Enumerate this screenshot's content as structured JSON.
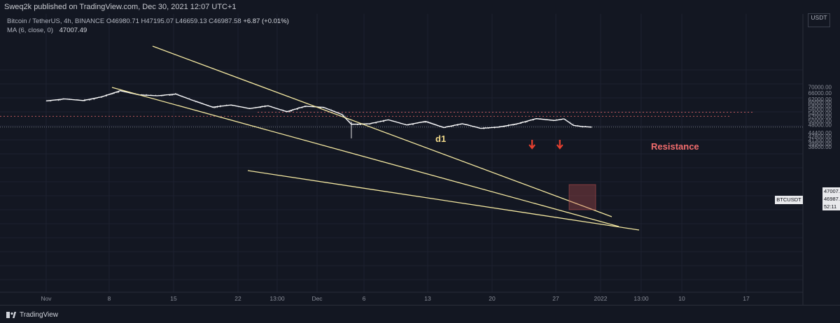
{
  "header": {
    "publish_line": "Sweq2k published on TradingView.com, Dec 30, 2021 12:07 UTC+1",
    "symbol_info": "Bitcoin / TetherUS, 4h, BINANCE",
    "ohlc": "O46980.71 H47195.07 L46659.13 C46987.58",
    "change": "+6.87 (+0.01%)",
    "ma_label": "MA (6, close, 0)",
    "ma_value": "47007.49",
    "currency": "USDT"
  },
  "footer": {
    "brand": "TradingView"
  },
  "colors": {
    "background": "#131722",
    "candle_up": "#e6e6e6",
    "candle_down": "#5d6170",
    "trendline": "#f4e8a1",
    "resistance": "#f26d6d",
    "arrow": "#e8402f",
    "label_d1": "#f0d98a",
    "ma_line": "#ffffff"
  },
  "chart_data": {
    "type": "line",
    "title": "",
    "xlabel": "",
    "ylabel": "",
    "x_tick_labels": [
      "Nov",
      "8",
      "15",
      "22",
      "13:00",
      "Dec",
      "6",
      "13",
      "20",
      "27",
      "2022",
      "13:00",
      "10",
      "17"
    ],
    "y_tick_labels": [
      "70000.00",
      "66000.00",
      "62000.00",
      "60000.00",
      "58000.00",
      "56000.00",
      "54000.00",
      "52000.00",
      "50000.00",
      "48000.00",
      "44400.00",
      "42800.00",
      "41300.00",
      "39900.00",
      "38600.00"
    ],
    "y_scale": "log",
    "ylim": [
      38000,
      72000
    ],
    "series": [
      {
        "x": [
          "Nov 1",
          "Nov 3",
          "Nov 5",
          "Nov 7",
          "Nov 9",
          "Nov 11",
          "Nov 13",
          "Nov 15",
          "Nov 17",
          "Nov 19",
          "Nov 21",
          "Nov 23",
          "Nov 25",
          "Nov 27",
          "Nov 29",
          "Dec 1",
          "Dec 3",
          "Dec 4",
          "Dec 6",
          "Dec 8",
          "Dec 10",
          "Dec 12",
          "Dec 14",
          "Dec 16",
          "Dec 18",
          "Dec 20",
          "Dec 22",
          "Dec 24",
          "Dec 26",
          "Dec 27",
          "Dec 28",
          "Dec 29",
          "Dec 30"
        ],
        "values": [
          61000,
          62200,
          61200,
          63500,
          67500,
          64800,
          64200,
          65300,
          61000,
          57300,
          58600,
          56500,
          58100,
          54800,
          57800,
          57200,
          53200,
          48300,
          48600,
          50500,
          48000,
          49700,
          46800,
          48600,
          46400,
          47000,
          48600,
          51100,
          50200,
          51000,
          47800,
          47200,
          46988
        ]
      }
    ],
    "ma": {
      "label": "MA (6, close, 0)",
      "last": 47007.49
    },
    "annotations": {
      "d1_label": "d1",
      "d1_level": 54500,
      "resistance_label": "Resistance",
      "resistance_level": 52300,
      "arrow_dates": [
        "Dec 24",
        "Dec 27"
      ],
      "last_price": "46987.58",
      "ma_last": "47007.49",
      "countdown": "52:11",
      "symbol": "BTCUSDT"
    }
  }
}
